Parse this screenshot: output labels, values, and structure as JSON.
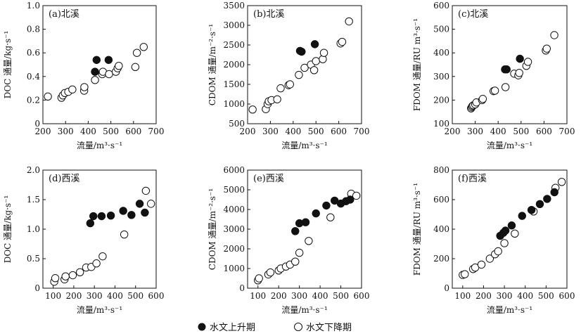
{
  "legend": {
    "rising": "水文上升期",
    "falling": "水文下降期"
  },
  "chart_data": [
    {
      "type": "scatter",
      "panel": "(a)北溪",
      "xlabel": "流量/m³·s⁻¹",
      "ylabel": "DOC 通量/kg·s⁻¹",
      "xlim": [
        200,
        700
      ],
      "ylim": [
        0,
        1.0
      ],
      "xticks": [
        200,
        300,
        400,
        500,
        600,
        700
      ],
      "yticks": [
        0,
        0.2,
        0.4,
        0.6,
        0.8,
        1.0
      ],
      "ytick_labels": [
        "0",
        "0.2",
        "0.4",
        "0.6",
        "0.8",
        "1.0"
      ],
      "series": [
        {
          "name": "水文上升期",
          "points": [
            [
              430,
              0.44
            ],
            [
              437,
              0.54
            ],
            [
              490,
              0.54
            ]
          ]
        },
        {
          "name": "水文下降期",
          "points": [
            [
              222,
              0.23
            ],
            [
              282,
              0.22
            ],
            [
              288,
              0.24
            ],
            [
              297,
              0.26
            ],
            [
              312,
              0.27
            ],
            [
              330,
              0.29
            ],
            [
              382,
              0.28
            ],
            [
              383,
              0.31
            ],
            [
              430,
              0.37
            ],
            [
              462,
              0.42
            ],
            [
              465,
              0.44
            ],
            [
              492,
              0.42
            ],
            [
              522,
              0.44
            ],
            [
              530,
              0.47
            ],
            [
              535,
              0.49
            ],
            [
              608,
              0.48
            ],
            [
              615,
              0.6
            ],
            [
              645,
              0.65
            ]
          ]
        }
      ]
    },
    {
      "type": "scatter",
      "panel": "(b)北溪",
      "xlabel": "流量/m³·s⁻¹",
      "ylabel": "CDOM 通量/m⁻²·s⁻¹",
      "xlim": [
        200,
        700
      ],
      "ylim": [
        500,
        3500
      ],
      "xticks": [
        200,
        300,
        400,
        500,
        600,
        700
      ],
      "yticks": [
        500,
        1000,
        1500,
        2000,
        2500,
        3000,
        3500
      ],
      "ytick_labels": [
        "500",
        "1000",
        "1500",
        "2000",
        "2500",
        "3000",
        "3500"
      ],
      "series": [
        {
          "name": "水文上升期",
          "points": [
            [
              430,
              2350
            ],
            [
              437,
              2330
            ],
            [
              495,
              2520
            ]
          ]
        },
        {
          "name": "水文下降期",
          "points": [
            [
              222,
              860
            ],
            [
              280,
              870
            ],
            [
              288,
              1000
            ],
            [
              293,
              1070
            ],
            [
              305,
              1100
            ],
            [
              330,
              1120
            ],
            [
              345,
              1400
            ],
            [
              380,
              1480
            ],
            [
              386,
              1500
            ],
            [
              425,
              1740
            ],
            [
              450,
              1920
            ],
            [
              478,
              2000
            ],
            [
              492,
              1860
            ],
            [
              500,
              2090
            ],
            [
              530,
              2140
            ],
            [
              535,
              2300
            ],
            [
              608,
              2540
            ],
            [
              615,
              2580
            ],
            [
              645,
              3100
            ]
          ]
        }
      ]
    },
    {
      "type": "scatter",
      "panel": "(c)北溪",
      "xlabel": "流量/m³·s⁻¹",
      "ylabel": "FDOM 通量/RU m³·s⁻¹",
      "xlim": [
        200,
        700
      ],
      "ylim": [
        100,
        600
      ],
      "xticks": [
        200,
        300,
        400,
        500,
        600,
        700
      ],
      "yticks": [
        100,
        200,
        300,
        400,
        500,
        600
      ],
      "ytick_labels": [
        "100",
        "200",
        "300",
        "400",
        "500",
        "600"
      ],
      "series": [
        {
          "name": "水文上升期",
          "points": [
            [
              430,
              330
            ],
            [
              437,
              330
            ],
            [
              495,
              375
            ]
          ]
        },
        {
          "name": "水文下降期",
          "points": [
            [
              282,
              165
            ],
            [
              285,
              170
            ],
            [
              288,
              175
            ],
            [
              292,
              178
            ],
            [
              300,
              182
            ],
            [
              305,
              190
            ],
            [
              330,
              200
            ],
            [
              333,
              205
            ],
            [
              380,
              238
            ],
            [
              386,
              240
            ],
            [
              432,
              255
            ],
            [
              470,
              312
            ],
            [
              488,
              305
            ],
            [
              492,
              315
            ],
            [
              523,
              345
            ],
            [
              530,
              362
            ],
            [
              608,
              410
            ],
            [
              612,
              418
            ],
            [
              645,
              475
            ]
          ]
        }
      ]
    },
    {
      "type": "scatter",
      "panel": "(d)西溪",
      "xlabel": "流量/m³·s⁻¹",
      "ylabel": "DOC 通量/kg·s⁻¹",
      "xlim": [
        50,
        600
      ],
      "ylim": [
        0,
        2.0
      ],
      "xticks": [
        100,
        200,
        300,
        400,
        500,
        600
      ],
      "yticks": [
        0,
        0.5,
        1.0,
        1.5,
        2.0
      ],
      "ytick_labels": [
        "0",
        "0.5",
        "1.0",
        "1.5",
        "2.0"
      ],
      "series": [
        {
          "name": "水文上升期",
          "points": [
            [
              280,
              1.1
            ],
            [
              295,
              1.22
            ],
            [
              335,
              1.22
            ],
            [
              380,
              1.23
            ],
            [
              440,
              1.31
            ],
            [
              480,
              1.24
            ],
            [
              520,
              1.43
            ],
            [
              545,
              1.28
            ]
          ]
        },
        {
          "name": "水文下降期",
          "points": [
            [
              105,
              0.11
            ],
            [
              110,
              0.17
            ],
            [
              155,
              0.15
            ],
            [
              160,
              0.2
            ],
            [
              195,
              0.22
            ],
            [
              230,
              0.27
            ],
            [
              260,
              0.35
            ],
            [
              285,
              0.36
            ],
            [
              310,
              0.42
            ],
            [
              340,
              0.54
            ],
            [
              445,
              0.91
            ],
            [
              550,
              1.65
            ],
            [
              575,
              1.43
            ]
          ]
        }
      ]
    },
    {
      "type": "scatter",
      "panel": "(e)西溪",
      "xlabel": "流量/m³·s⁻¹",
      "ylabel": "CDOM 通量/m⁻²·s⁻¹",
      "xlim": [
        50,
        600
      ],
      "ylim": [
        0,
        6000
      ],
      "xticks": [
        100,
        200,
        300,
        400,
        500,
        600
      ],
      "yticks": [
        0,
        1000,
        2000,
        3000,
        4000,
        5000,
        6000
      ],
      "ytick_labels": [
        "0",
        "1000",
        "2000",
        "3000",
        "4000",
        "5000",
        "6000"
      ],
      "series": [
        {
          "name": "水文上升期",
          "points": [
            [
              280,
              2900
            ],
            [
              300,
              3300
            ],
            [
              330,
              3350
            ],
            [
              380,
              3800
            ],
            [
              430,
              4200
            ],
            [
              470,
              4450
            ],
            [
              500,
              4300
            ],
            [
              525,
              4420
            ],
            [
              545,
              4500
            ]
          ]
        },
        {
          "name": "水文下降期",
          "points": [
            [
              100,
              400
            ],
            [
              105,
              500
            ],
            [
              150,
              700
            ],
            [
              160,
              800
            ],
            [
              200,
              900
            ],
            [
              210,
              1000
            ],
            [
              235,
              1100
            ],
            [
              255,
              1200
            ],
            [
              280,
              1350
            ],
            [
              300,
              1800
            ],
            [
              345,
              2400
            ],
            [
              450,
              3600
            ],
            [
              550,
              4800
            ],
            [
              575,
              4700
            ]
          ]
        }
      ]
    },
    {
      "type": "scatter",
      "panel": "(f)西溪",
      "xlabel": "流量/m³·s⁻¹",
      "ylabel": "FDOM 通量/RU m³·s⁻¹",
      "xlim": [
        50,
        600
      ],
      "ylim": [
        0,
        800
      ],
      "xticks": [
        100,
        200,
        300,
        400,
        500,
        600
      ],
      "yticks": [
        0,
        200,
        400,
        600,
        800
      ],
      "ytick_labels": [
        "0",
        "200",
        "400",
        "600",
        "800"
      ],
      "series": [
        {
          "name": "水文上升期",
          "points": [
            [
              280,
              355
            ],
            [
              295,
              375
            ],
            [
              305,
              390
            ],
            [
              335,
              425
            ],
            [
              385,
              490
            ],
            [
              430,
              530
            ],
            [
              470,
              570
            ],
            [
              505,
              605
            ],
            [
              540,
              650
            ]
          ]
        },
        {
          "name": "水文下降期",
          "points": [
            [
              100,
              90
            ],
            [
              110,
              95
            ],
            [
              150,
              130
            ],
            [
              160,
              140
            ],
            [
              190,
              160
            ],
            [
              230,
              200
            ],
            [
              255,
              230
            ],
            [
              270,
              250
            ],
            [
              300,
              305
            ],
            [
              350,
              370
            ],
            [
              440,
              520
            ],
            [
              545,
              680
            ],
            [
              575,
              720
            ]
          ]
        }
      ]
    }
  ]
}
